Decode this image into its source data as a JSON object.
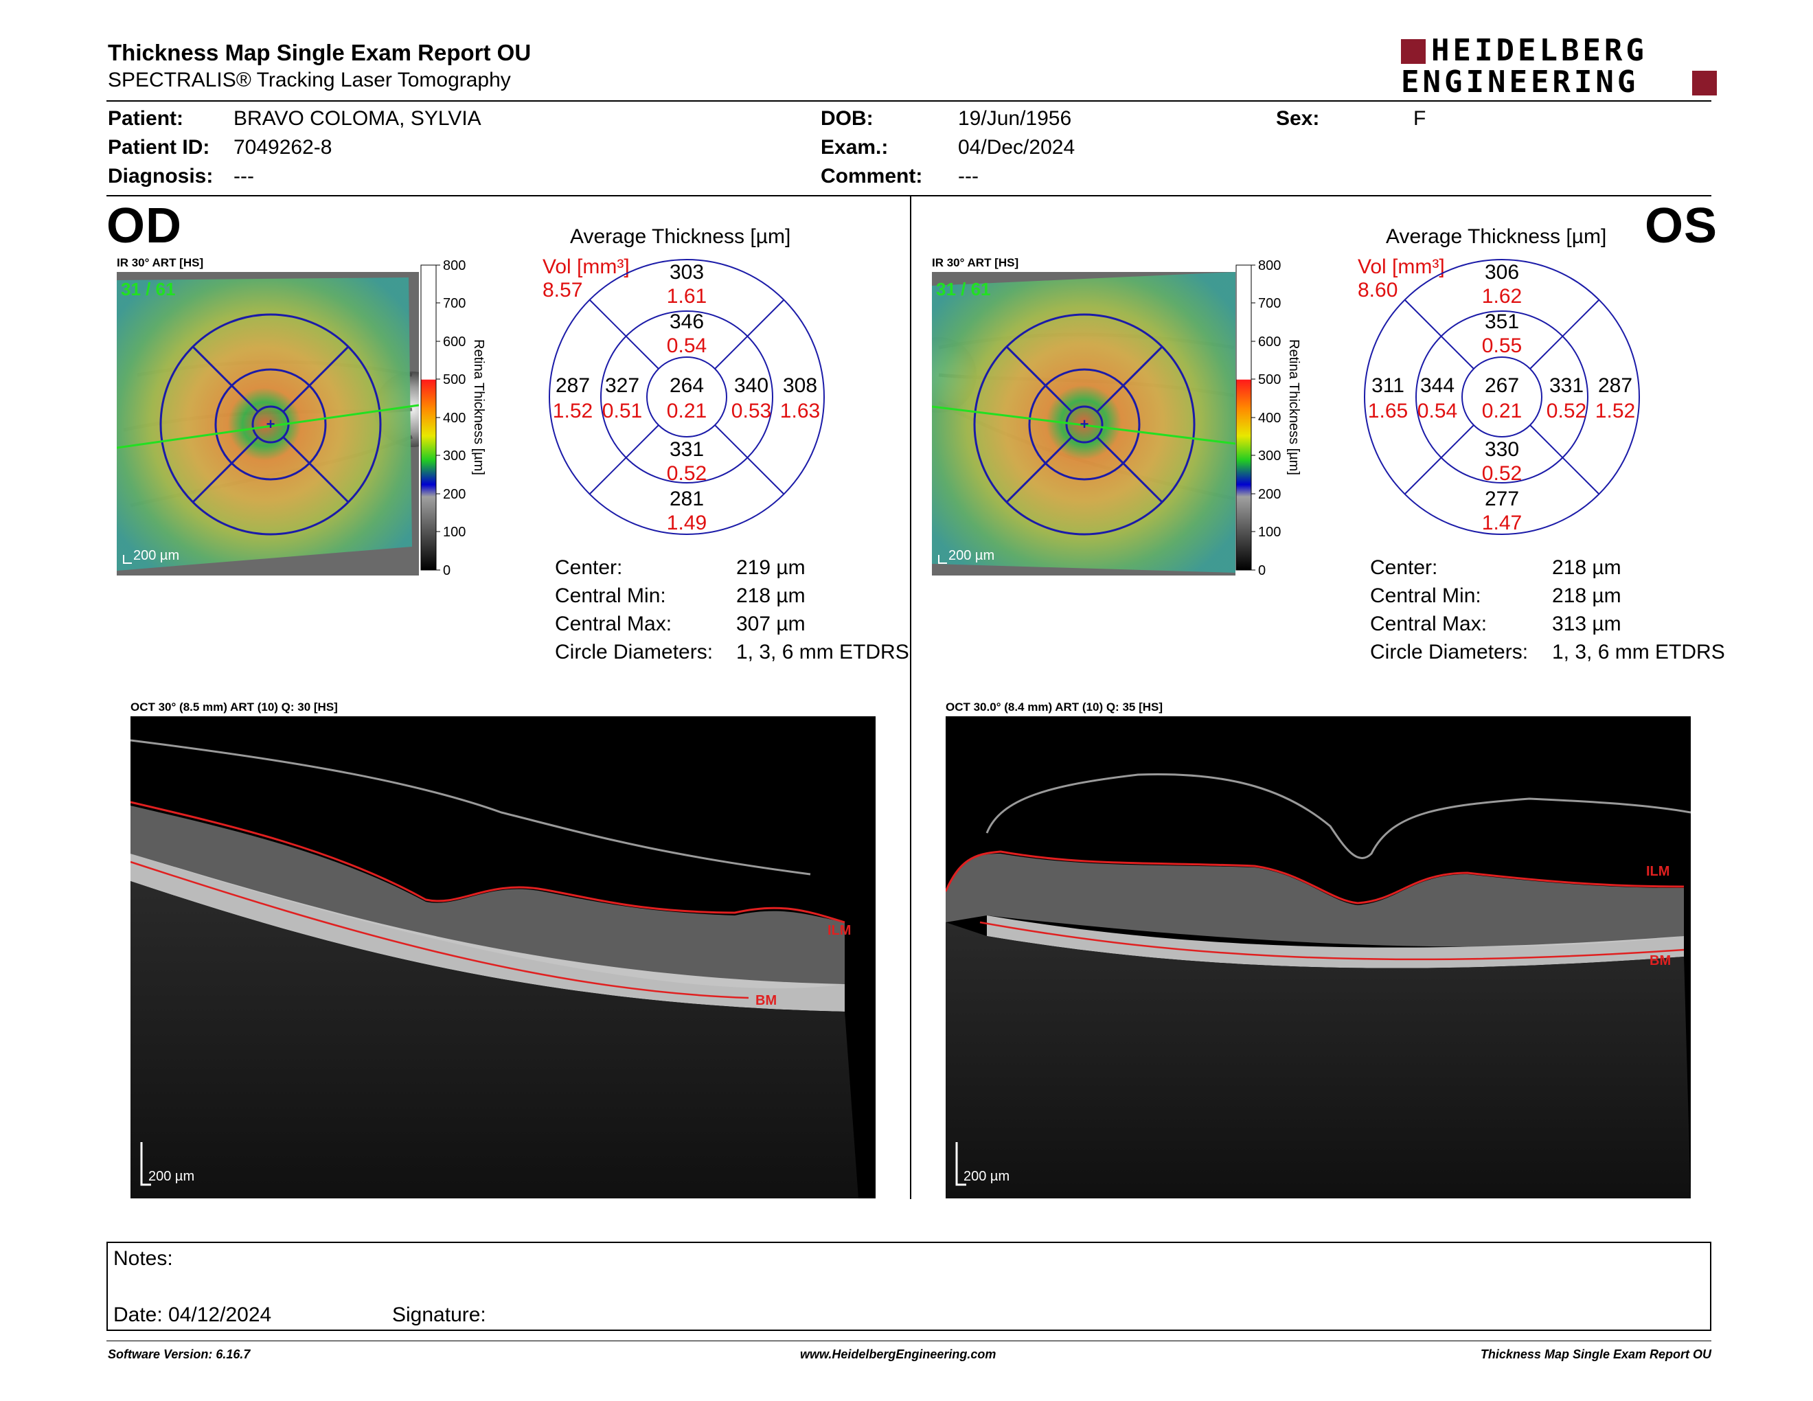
{
  "header": {
    "title": "Thickness Map Single Exam Report OU",
    "subtitle": "SPECTRALIS® Tracking Laser Tomography",
    "logo_line1": "HEIDELBERG",
    "logo_line2": "ENGINEERING",
    "brand_color": "#8b1a2b"
  },
  "patient": {
    "patient_label": "Patient:",
    "patient_value": "BRAVO COLOMA, SYLVIA",
    "id_label": "Patient ID:",
    "id_value": "7049262-8",
    "diagnosis_label": "Diagnosis:",
    "diagnosis_value": "---",
    "dob_label": "DOB:",
    "dob_value": "19/Jun/1956",
    "exam_label": "Exam.:",
    "exam_value": "04/Dec/2024",
    "comment_label": "Comment:",
    "comment_value": "---",
    "sex_label": "Sex:",
    "sex_value": "F"
  },
  "colorbar": {
    "ticks": [
      "800",
      "700",
      "600",
      "500",
      "400",
      "300",
      "200",
      "100",
      "0"
    ],
    "label": "Retina  Thickness [µm]"
  },
  "od": {
    "eye": "OD",
    "ir_label": "IR 30° ART [HS]",
    "frame": "31 / 61",
    "scale": "200 µm",
    "avg_title": "Average Thickness [µm]",
    "vol_label": "Vol [mm³]",
    "vol_total": "8.57",
    "grid": {
      "center": {
        "t": "264",
        "v": "0.21"
      },
      "inner_sup": {
        "t": "346",
        "v": "0.54"
      },
      "inner_inf": {
        "t": "331",
        "v": "0.52"
      },
      "inner_left": {
        "t": "327",
        "v": "0.51"
      },
      "inner_right": {
        "t": "340",
        "v": "0.53"
      },
      "outer_sup": {
        "t": "303",
        "v": "1.61"
      },
      "outer_inf": {
        "t": "281",
        "v": "1.49"
      },
      "outer_left": {
        "t": "287",
        "v": "1.52"
      },
      "outer_right": {
        "t": "308",
        "v": "1.63"
      }
    },
    "stats": {
      "center_label": "Center:",
      "center_value": "219 µm",
      "min_label": "Central Min:",
      "min_value": "218 µm",
      "max_label": "Central Max:",
      "max_value": "307 µm",
      "diam_label": "Circle Diameters:",
      "diam_value": "1, 3, 6 mm ETDRS"
    },
    "oct_label": "OCT 30° (8.5 mm) ART (10) Q: 30 [HS]",
    "oct_scale": "200 µm",
    "ilm": "ILM",
    "bm": "BM"
  },
  "os": {
    "eye": "OS",
    "ir_label": "IR 30° ART [HS]",
    "frame": "31 / 61",
    "scale": "200 µm",
    "avg_title": "Average Thickness [µm]",
    "vol_label": "Vol [mm³]",
    "vol_total": "8.60",
    "grid": {
      "center": {
        "t": "267",
        "v": "0.21"
      },
      "inner_sup": {
        "t": "351",
        "v": "0.55"
      },
      "inner_inf": {
        "t": "330",
        "v": "0.52"
      },
      "inner_left": {
        "t": "344",
        "v": "0.54"
      },
      "inner_right": {
        "t": "331",
        "v": "0.52"
      },
      "outer_sup": {
        "t": "306",
        "v": "1.62"
      },
      "outer_inf": {
        "t": "277",
        "v": "1.47"
      },
      "outer_left": {
        "t": "311",
        "v": "1.65"
      },
      "outer_right": {
        "t": "287",
        "v": "1.52"
      }
    },
    "stats": {
      "center_label": "Center:",
      "center_value": "218 µm",
      "min_label": "Central Min:",
      "min_value": "218 µm",
      "max_label": "Central Max:",
      "max_value": "313 µm",
      "diam_label": "Circle Diameters:",
      "diam_value": "1, 3, 6 mm ETDRS"
    },
    "oct_label": "OCT 30.0° (8.4 mm) ART (10) Q: 35 [HS]",
    "oct_scale": "200 µm",
    "ilm": "ILM",
    "bm": "BM"
  },
  "notes": {
    "notes_label": "Notes:",
    "date_label": "Date: 04/12/2024",
    "signature_label": "Signature:"
  },
  "footer": {
    "version": "Software Version: 6.16.7",
    "website": "www.HeidelbergEngineering.com",
    "report_name": "Thickness Map Single Exam Report OU"
  }
}
